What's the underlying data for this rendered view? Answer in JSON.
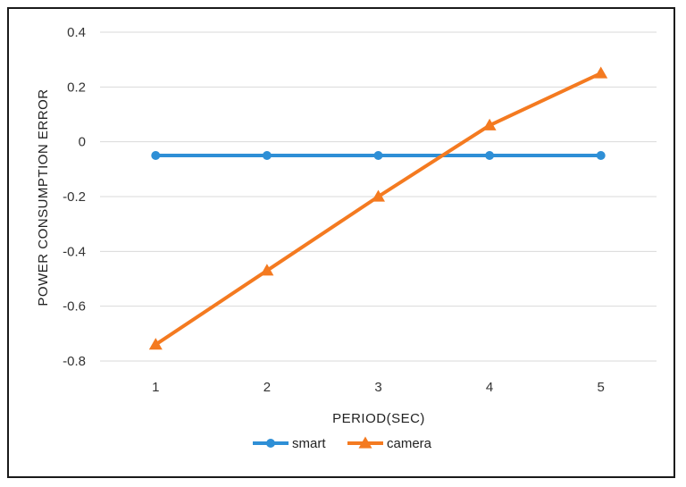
{
  "chart_data": {
    "type": "line",
    "categories": [
      "1",
      "2",
      "3",
      "4",
      "5"
    ],
    "series": [
      {
        "name": "smart",
        "values": [
          -0.05,
          -0.05,
          -0.05,
          -0.05,
          -0.05
        ],
        "color": "#2e8fd6",
        "marker": "circle"
      },
      {
        "name": "camera",
        "values": [
          -0.74,
          -0.47,
          -0.2,
          0.06,
          0.25
        ],
        "color": "#f47a20",
        "marker": "triangle"
      }
    ],
    "title": "",
    "xlabel": "PERIOD(SEC)",
    "ylabel": "POWER CONSUMPTION ERROR",
    "ylim": [
      -0.8,
      0.4
    ],
    "yticks": [
      "0.4",
      "0.2",
      "0",
      "-0.2",
      "-0.4",
      "-0.6",
      "-0.8"
    ],
    "grid": true,
    "legend_position": "bottom"
  }
}
